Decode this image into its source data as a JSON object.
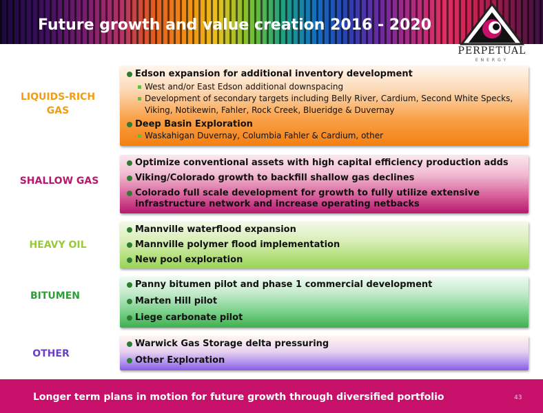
{
  "header": {
    "title": "Future growth and value creation 2016 - 2020"
  },
  "logo": {
    "wordmark": "PERPETUAL",
    "sub": "ENERGY"
  },
  "colors": {
    "liquids": "#f47f10",
    "shallow": "#b7186e",
    "heavy": "#9ac83b",
    "bitumen": "#2e9e3a",
    "other": "#6a3fc9",
    "footer": "#c6106a"
  },
  "sections": [
    {
      "category": "LIQUIDS-RICH GAS",
      "category_lines": [
        "LIQUIDS-RICH",
        "GAS"
      ],
      "items": [
        {
          "text": "Edson expansion for additional inventory development",
          "subs": [
            "West and/or East Edson additional downspacing",
            "Development of secondary targets including Belly River, Cardium, Second White Specks, Viking, Notikewin, Fahler, Rock Creek, Blueridge & Duvernay"
          ]
        },
        {
          "text": "Deep Basin Exploration",
          "subs": [
            "Waskahigan Duvernay, Columbia Fahler & Cardium, other"
          ]
        }
      ]
    },
    {
      "category": "SHALLOW GAS",
      "items": [
        {
          "text": "Optimize conventional assets with high capital efficiency production adds"
        },
        {
          "text": "Viking/Colorado growth to backfill shallow gas declines"
        },
        {
          "text": "Colorado full scale development for growth to fully utilize extensive infrastructure network and increase operating netbacks"
        }
      ]
    },
    {
      "category": "HEAVY OIL",
      "items": [
        {
          "text": "Mannville waterflood expansion"
        },
        {
          "text": "Mannville polymer flood implementation"
        },
        {
          "text": "New pool exploration"
        }
      ]
    },
    {
      "category": "BITUMEN",
      "items": [
        {
          "text": "Panny bitumen pilot and phase 1 commercial development"
        },
        {
          "text": "Marten Hill pilot"
        },
        {
          "text": "Liege carbonate pilot"
        }
      ]
    },
    {
      "category": "OTHER",
      "items": [
        {
          "text": "Warwick Gas Storage delta pressuring"
        },
        {
          "text": "Other Exploration"
        }
      ]
    }
  ],
  "footer": {
    "text": "Longer term plans  in motion for future growth through diversified portfolio",
    "page": "43"
  }
}
